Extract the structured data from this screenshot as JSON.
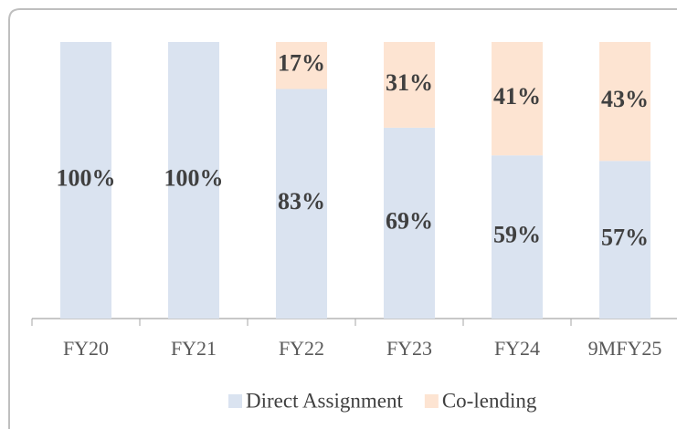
{
  "chart_data": {
    "type": "stacked-bar",
    "categories": [
      "FY20",
      "FY21",
      "FY22",
      "FY23",
      "FY24",
      "9MFY25"
    ],
    "series": [
      {
        "name": "Direct Assignment",
        "color": "#dae3f0",
        "values": [
          100,
          100,
          83,
          69,
          59,
          57
        ],
        "value_labels": [
          "100%",
          "100%",
          "83%",
          "69%",
          "59%",
          "57%"
        ]
      },
      {
        "name": "Co-lending",
        "color": "#fde4d2",
        "values": [
          0,
          0,
          17,
          31,
          41,
          43
        ],
        "value_labels": [
          null,
          null,
          "17%",
          "31%",
          "41%",
          "43%"
        ]
      }
    ],
    "ylim": [
      0,
      100
    ],
    "legend": "bottom"
  }
}
